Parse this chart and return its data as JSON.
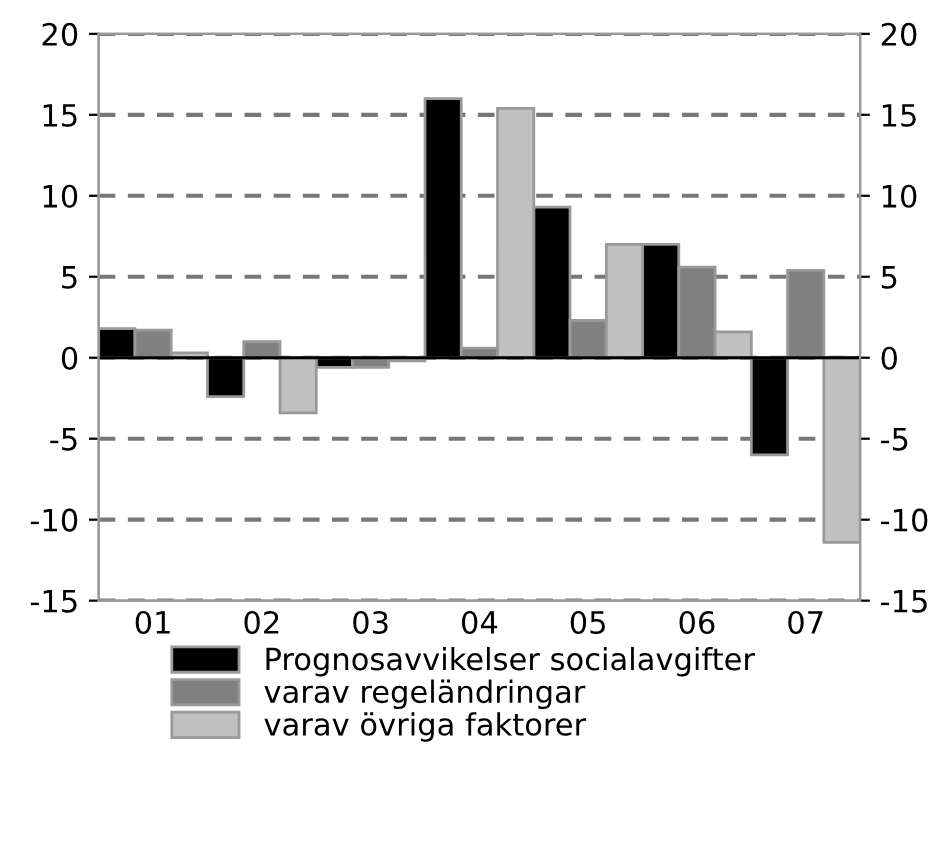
{
  "chart_data": {
    "type": "bar",
    "categories": [
      "01",
      "02",
      "03",
      "04",
      "05",
      "06",
      "07"
    ],
    "series": [
      {
        "name": "Prognosavvikelser socialavgifter",
        "color": "#000000",
        "values": [
          1.8,
          -2.4,
          -0.6,
          16.0,
          9.3,
          7.0,
          -6.0
        ]
      },
      {
        "name": "varav regeländringar",
        "color": "#808080",
        "values": [
          1.7,
          1.0,
          -0.6,
          0.6,
          2.3,
          5.6,
          5.4
        ]
      },
      {
        "name": "varav övriga faktorer",
        "color": "#c0c0c0",
        "values": [
          0.3,
          -3.4,
          -0.2,
          15.4,
          7.0,
          1.6,
          -11.4
        ]
      }
    ],
    "ylim": [
      -15,
      20
    ],
    "yticks": [
      -15,
      -10,
      -5,
      0,
      5,
      10,
      15,
      20
    ],
    "y2lim": [
      -15,
      20
    ],
    "y2ticks": [
      -15,
      -10,
      -5,
      0,
      5,
      10,
      15,
      20
    ],
    "grid": "y",
    "legend": "bottom"
  }
}
